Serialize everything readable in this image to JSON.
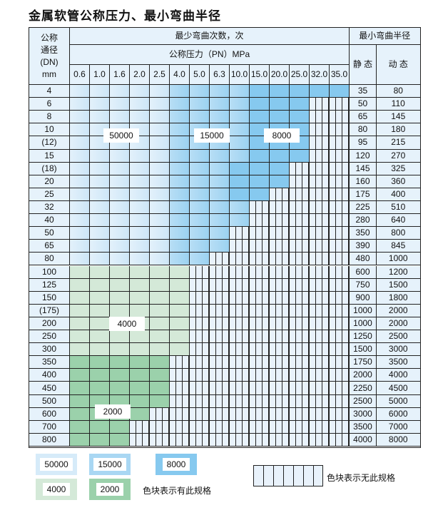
{
  "title": "金属软管公称压力、最小弯曲半径",
  "header": {
    "dn": "公称\n通径\n(DN)\nmm",
    "cycles": "最少弯曲次数，次",
    "pressure": "公称压力（PN）MPa",
    "radius": "最小弯曲半径",
    "static": "静 态",
    "dynamic": "动 态",
    "pressures": [
      "0.6",
      "1.0",
      "1.6",
      "2.0",
      "2.5",
      "4.0",
      "5.0",
      "6.3",
      "10.0",
      "15.0",
      "20.0",
      "25.0",
      "32.0",
      "35.0"
    ]
  },
  "zones": {
    "A": {
      "value": "50000",
      "color": "#d6ebf9"
    },
    "B": {
      "value": "15000",
      "color": "#a9d7f3"
    },
    "C": {
      "value": "8000",
      "color": "#86c9ef"
    },
    "D": {
      "value": "4000",
      "color": "#d4e9d8"
    },
    "E": {
      "value": "2000",
      "color": "#9bd1ab"
    }
  },
  "rows": [
    {
      "dn": "4",
      "s": "35",
      "d": "80",
      "cells": "AAAAABBBBCCCCC"
    },
    {
      "dn": "6",
      "s": "50",
      "d": "110",
      "cells": "AAAAABBBBCCC--"
    },
    {
      "dn": "8",
      "s": "65",
      "d": "145",
      "cells": "AAAAABBBBCCC--"
    },
    {
      "dn": "10",
      "s": "80",
      "d": "180",
      "cells": "AAAAABBBBCCC--"
    },
    {
      "dn": "(12)",
      "s": "95",
      "d": "215",
      "cells": "AAAAABBBBCCC--"
    },
    {
      "dn": "15",
      "s": "120",
      "d": "270",
      "cells": "AAAAABBBBCCC--"
    },
    {
      "dn": "(18)",
      "s": "145",
      "d": "325",
      "cells": "AAAAABBBCCC---"
    },
    {
      "dn": "20",
      "s": "160",
      "d": "360",
      "cells": "AAAAABBBCCC---"
    },
    {
      "dn": "25",
      "s": "175",
      "d": "400",
      "cells": "AAAAABBBCC----"
    },
    {
      "dn": "32",
      "s": "225",
      "d": "510",
      "cells": "AAAAABBBB-----"
    },
    {
      "dn": "40",
      "s": "280",
      "d": "640",
      "cells": "AAAAABBBB-----"
    },
    {
      "dn": "50",
      "s": "350",
      "d": "800",
      "cells": "AAAAABBB------"
    },
    {
      "dn": "65",
      "s": "390",
      "d": "845",
      "cells": "AAAAABBB------"
    },
    {
      "dn": "80",
      "s": "480",
      "d": "1000",
      "cells": "AAAAABB-------"
    },
    {
      "dn": "100",
      "s": "600",
      "d": "1200",
      "cells": "DDDDDD--------"
    },
    {
      "dn": "125",
      "s": "750",
      "d": "1500",
      "cells": "DDDDDD--------"
    },
    {
      "dn": "150",
      "s": "900",
      "d": "1800",
      "cells": "DDDDDD--------"
    },
    {
      "dn": "(175)",
      "s": "1000",
      "d": "2000",
      "cells": "DDDDDD--------"
    },
    {
      "dn": "200",
      "s": "1000",
      "d": "2000",
      "cells": "DDDDDD--------"
    },
    {
      "dn": "250",
      "s": "1250",
      "d": "2500",
      "cells": "DDDDDD--------"
    },
    {
      "dn": "300",
      "s": "1500",
      "d": "3000",
      "cells": "DDDDDD--------"
    },
    {
      "dn": "350",
      "s": "1750",
      "d": "3500",
      "cells": "EEEEE---------"
    },
    {
      "dn": "400",
      "s": "2000",
      "d": "4000",
      "cells": "EEEEE---------"
    },
    {
      "dn": "450",
      "s": "2250",
      "d": "4500",
      "cells": "EEEEE---------"
    },
    {
      "dn": "500",
      "s": "2500",
      "d": "5000",
      "cells": "EEEEE---------"
    },
    {
      "dn": "600",
      "s": "3000",
      "d": "6000",
      "cells": "EEEE----------"
    },
    {
      "dn": "700",
      "s": "3500",
      "d": "7000",
      "cells": "EEE-----------"
    },
    {
      "dn": "800",
      "s": "4000",
      "d": "8000",
      "cells": "EEE-----------"
    }
  ],
  "legend": {
    "has_spec": "色块表示有此规格",
    "no_spec": "色块表示无此规格"
  }
}
